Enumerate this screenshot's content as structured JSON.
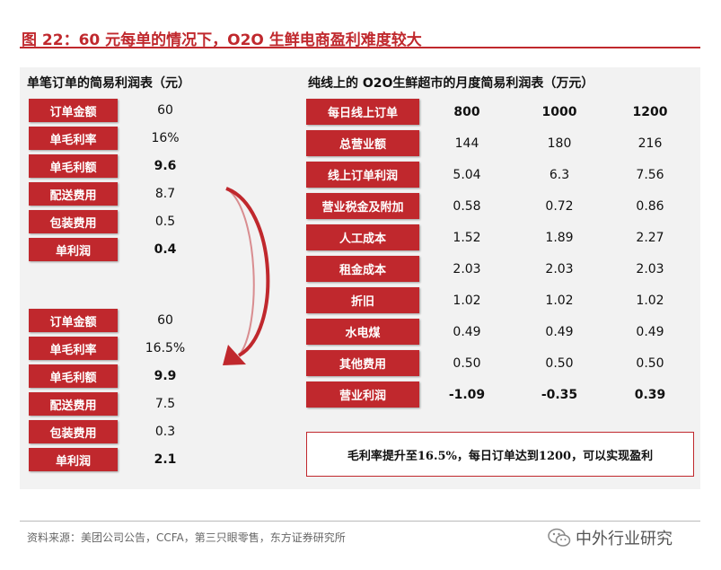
{
  "figure": {
    "title": "图 22：60 元每单的情况下，O2O 生鲜电商盈利难度较大",
    "source": "资料来源：美团公司公告，CCFA，第三只眼零售，东方证券研究所",
    "watermark": "中外行业研究",
    "watermark_icon": "wechat-icon"
  },
  "left_table": {
    "title": "单笔订单的简易利润表（元）",
    "blocks": [
      {
        "rows": [
          {
            "label": "订单金额",
            "value": "60",
            "bold": false
          },
          {
            "label": "单毛利率",
            "value": "16%",
            "bold": false
          },
          {
            "label": "单毛利额",
            "value": "9.6",
            "bold": true
          },
          {
            "label": "配送费用",
            "value": "8.7",
            "bold": false
          },
          {
            "label": "包装费用",
            "value": "0.5",
            "bold": false
          },
          {
            "label": "单利润",
            "value": "0.4",
            "bold": true
          }
        ]
      },
      {
        "rows": [
          {
            "label": "订单金额",
            "value": "60",
            "bold": false
          },
          {
            "label": "单毛利率",
            "value": "16.5%",
            "bold": false
          },
          {
            "label": "单毛利额",
            "value": "9.9",
            "bold": true
          },
          {
            "label": "配送费用",
            "value": "7.5",
            "bold": false
          },
          {
            "label": "包装费用",
            "value": "0.3",
            "bold": false
          },
          {
            "label": "单利润",
            "value": "2.1",
            "bold": true
          }
        ]
      }
    ]
  },
  "right_table": {
    "title": "纯线上的 O2O生鲜超市的月度简易利润表（万元）",
    "header_label": "每日线上订单",
    "columns": [
      "800",
      "1000",
      "1200"
    ],
    "rows": [
      {
        "label": "总营业额",
        "values": [
          "144",
          "180",
          "216"
        ],
        "bold": false
      },
      {
        "label": "线上订单利润",
        "values": [
          "5.04",
          "6.3",
          "7.56"
        ],
        "bold": false
      },
      {
        "label": "营业税金及附加",
        "values": [
          "0.58",
          "0.72",
          "0.86"
        ],
        "bold": false
      },
      {
        "label": "人工成本",
        "values": [
          "1.52",
          "1.89",
          "2.27"
        ],
        "bold": false
      },
      {
        "label": "租金成本",
        "values": [
          "2.03",
          "2.03",
          "2.03"
        ],
        "bold": false
      },
      {
        "label": "折旧",
        "values": [
          "1.02",
          "1.02",
          "1.02"
        ],
        "bold": false
      },
      {
        "label": "水电煤",
        "values": [
          "0.49",
          "0.49",
          "0.49"
        ],
        "bold": false
      },
      {
        "label": "其他费用",
        "values": [
          "0.50",
          "0.50",
          "0.50"
        ],
        "bold": false
      },
      {
        "label": "营业利润",
        "values": [
          "-1.09",
          "-0.35",
          "0.39"
        ],
        "bold": true
      }
    ],
    "note": "毛利率提升至16.5%，每日订单达到1200，可以实现盈利"
  },
  "colors": {
    "accent": "#c0282d",
    "panel_bg": "#f2f2f2"
  }
}
